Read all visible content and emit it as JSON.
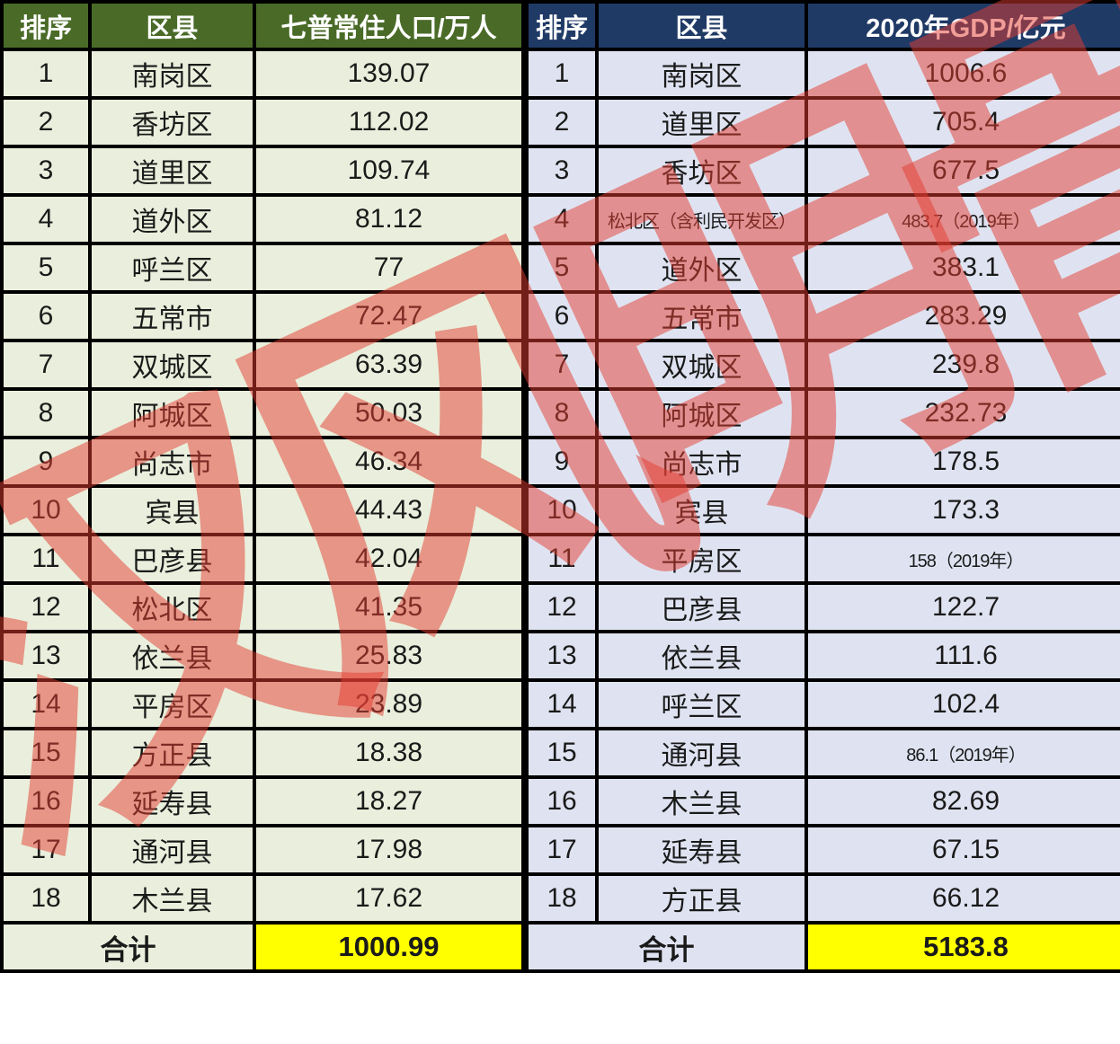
{
  "watermark": {
    "text": "汉风明骨",
    "color": "rgba(228,60,48,0.5)"
  },
  "tables": [
    {
      "id": "population",
      "theme": {
        "header_bg": "#4a6b28",
        "header_text": "#ffffff",
        "cell_bg": "#e9efdc",
        "total_value_bg": "#ffff00",
        "border": "#000000"
      },
      "headers": [
        "排序",
        "区县",
        "七普常住人口/万人"
      ],
      "rows": [
        [
          "1",
          "南岗区",
          "139.07"
        ],
        [
          "2",
          "香坊区",
          "112.02"
        ],
        [
          "3",
          "道里区",
          "109.74"
        ],
        [
          "4",
          "道外区",
          "81.12"
        ],
        [
          "5",
          "呼兰区",
          "77"
        ],
        [
          "6",
          "五常市",
          "72.47"
        ],
        [
          "7",
          "双城区",
          "63.39"
        ],
        [
          "8",
          "阿城区",
          "50.03"
        ],
        [
          "9",
          "尚志市",
          "46.34"
        ],
        [
          "10",
          "宾县",
          "44.43"
        ],
        [
          "11",
          "巴彦县",
          "42.04"
        ],
        [
          "12",
          "松北区",
          "41.35"
        ],
        [
          "13",
          "依兰县",
          "25.83"
        ],
        [
          "14",
          "平房区",
          "23.89"
        ],
        [
          "15",
          "方正县",
          "18.38"
        ],
        [
          "16",
          "延寿县",
          "18.27"
        ],
        [
          "17",
          "通河县",
          "17.98"
        ],
        [
          "18",
          "木兰县",
          "17.62"
        ]
      ],
      "total_label": "合计",
      "total_value": "1000.99"
    },
    {
      "id": "gdp",
      "theme": {
        "header_bg": "#203a66",
        "header_text": "#ffffff",
        "cell_bg": "#dfe3f1",
        "total_value_bg": "#ffff00",
        "border": "#000000"
      },
      "headers": [
        "排序",
        "区县",
        "2020年GDP/亿元"
      ],
      "rows": [
        [
          "1",
          "南岗区",
          "1006.6"
        ],
        [
          "2",
          "道里区",
          "705.4"
        ],
        [
          "3",
          "香坊区",
          "677.5"
        ],
        [
          "4",
          "松北区（含利民开发区）",
          "483.7（2019年）"
        ],
        [
          "5",
          "道外区",
          "383.1"
        ],
        [
          "6",
          "五常市",
          "283.29"
        ],
        [
          "7",
          "双城区",
          "239.8"
        ],
        [
          "8",
          "阿城区",
          "232.73"
        ],
        [
          "9",
          "尚志市",
          "178.5"
        ],
        [
          "10",
          "宾县",
          "173.3"
        ],
        [
          "11",
          "平房区",
          "158（2019年）"
        ],
        [
          "12",
          "巴彦县",
          "122.7"
        ],
        [
          "13",
          "依兰县",
          "111.6"
        ],
        [
          "14",
          "呼兰区",
          "102.4"
        ],
        [
          "15",
          "通河县",
          "86.1（2019年）"
        ],
        [
          "16",
          "木兰县",
          "82.69"
        ],
        [
          "17",
          "延寿县",
          "67.15"
        ],
        [
          "18",
          "方正县",
          "66.12"
        ]
      ],
      "total_label": "合计",
      "total_value": "5183.8"
    }
  ]
}
